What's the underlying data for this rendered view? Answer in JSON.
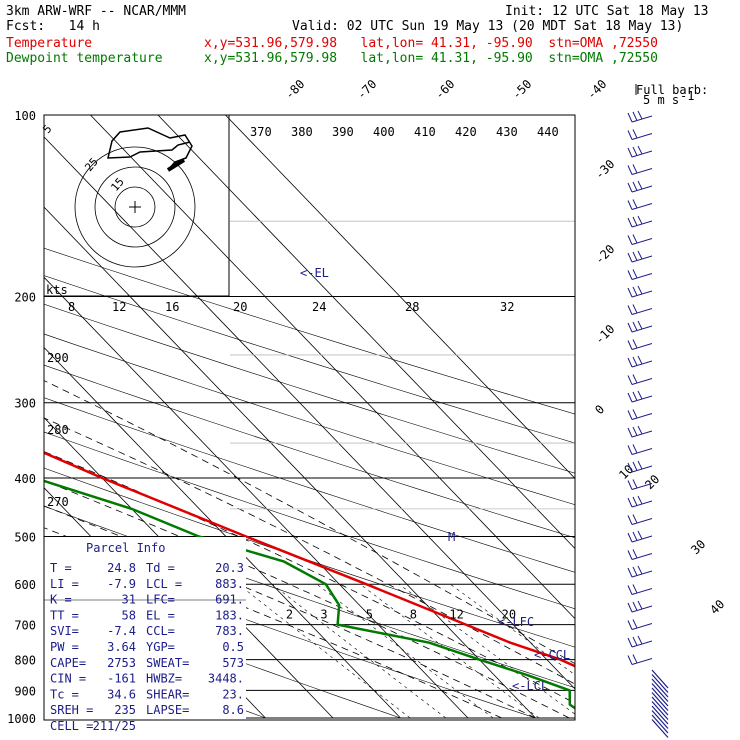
{
  "header": {
    "model": "3km ARW-WRF -- NCAR/MMM",
    "init": "Init: 12 UTC Sat 18 May 13",
    "fcst": "Fcst:   14 h",
    "valid": "Valid: 02 UTC Sun 19 May 13 (20 MDT Sat 18 May 13)",
    "line3_name": "Temperature",
    "line3_info": "x,y=531.96,579.98   lat,lon= 41.31, -95.90  stn=OMA ,72550",
    "line4_name": "Dewpoint temperature",
    "line4_info": "x,y=531.96,579.98   lat,lon= 41.31, -95.90  stn=OMA ,72550",
    "full_barb": "Full barb:",
    "full_barb_units": "5 m s",
    "full_barb_sup": "-1"
  },
  "colors": {
    "temperature": "#e00000",
    "dewpoint": "#007a00",
    "navy": "#1c1c8a",
    "dashed": "#000000"
  },
  "chart_data": {
    "type": "line",
    "subtype": "skew-T log-p diagram",
    "pressure_levels": [
      "100",
      "200",
      "300",
      "400",
      "500",
      "600",
      "700",
      "800",
      "900",
      "1000"
    ],
    "isotherm_labels": [
      "-80",
      "-70",
      "-60",
      "-50",
      "-40",
      "-30",
      "-20",
      "-10",
      "0",
      "10",
      "20",
      "30",
      "40"
    ],
    "theta_e_labels": [
      "370",
      "380",
      "390",
      "400",
      "410",
      "420",
      "430",
      "440"
    ],
    "theta_e_low_labels": [
      "290",
      "280",
      "270"
    ],
    "mixing_ratio_labels": [
      "2",
      "3",
      "5",
      "8",
      "12",
      "20"
    ],
    "hodo_speed_labels": [
      "8",
      "12",
      "16",
      "20",
      "24",
      "28",
      "32"
    ],
    "hodo_ring_labels": [
      "5",
      "25",
      "15"
    ],
    "kts_label": "kts",
    "series": [
      {
        "name": "Temperature",
        "points": [
          [
            1000,
            21
          ],
          [
            950,
            22
          ],
          [
            900,
            20
          ],
          [
            870,
            24
          ],
          [
            850,
            25
          ],
          [
            800,
            22
          ],
          [
            750,
            17
          ],
          [
            700,
            13
          ],
          [
            600,
            4
          ],
          [
            500,
            -7
          ],
          [
            400,
            -20
          ],
          [
            300,
            -35
          ],
          [
            250,
            -44
          ],
          [
            220,
            -50
          ],
          [
            200,
            -55
          ],
          [
            175,
            -55
          ],
          [
            150,
            -52
          ],
          [
            120,
            -50
          ],
          [
            100,
            -48
          ]
        ]
      },
      {
        "name": "Dewpoint temperature",
        "points": [
          [
            1000,
            18
          ],
          [
            950,
            17
          ],
          [
            900,
            19
          ],
          [
            850,
            15
          ],
          [
            800,
            10
          ],
          [
            750,
            5
          ],
          [
            700,
            -6
          ],
          [
            650,
            -3
          ],
          [
            600,
            -2
          ],
          [
            550,
            -5
          ],
          [
            500,
            -14
          ],
          [
            450,
            -20
          ],
          [
            400,
            -30
          ],
          [
            380,
            -43
          ],
          [
            350,
            -38
          ],
          [
            330,
            -42
          ],
          [
            300,
            -47
          ],
          [
            250,
            -52
          ],
          [
            220,
            -55
          ],
          [
            200,
            -60
          ],
          [
            175,
            -65
          ],
          [
            150,
            -76
          ],
          [
            130,
            -80
          ],
          [
            100,
            -82
          ]
        ]
      }
    ],
    "annotations": {
      "el": "<-EL",
      "lfc": "<-LFC",
      "ccl": "<-CCL",
      "lcl": "<-LCL",
      "m": "M"
    }
  },
  "parcel_info": {
    "title": "Parcel Info",
    "rows": [
      {
        "a_label": "T  =",
        "a_value": "24.8",
        "b_label": "Td =",
        "b_value": "20.3"
      },
      {
        "a_label": "LI =",
        "a_value": "-7.9",
        "b_label": "LCL =",
        "b_value": "883."
      },
      {
        "a_label": "K  =",
        "a_value": "31",
        "b_label": "LFC=",
        "b_value": "691."
      },
      {
        "a_label": "TT =",
        "a_value": "58",
        "b_label": "EL =",
        "b_value": "183."
      },
      {
        "a_label": "SVI=",
        "a_value": "-7.4",
        "b_label": "CCL=",
        "b_value": "783."
      },
      {
        "a_label": "PW =",
        "a_value": "3.64",
        "b_label": "YGP=",
        "b_value": "0.5"
      },
      {
        "a_label": "CAPE=",
        "a_value": "2753",
        "b_label": "SWEAT=",
        "b_value": "573"
      },
      {
        "a_label": "CIN =",
        "a_value": "-161",
        "b_label": "HWBZ=",
        "b_value": "3448."
      },
      {
        "a_label": "Tc =",
        "a_value": "34.6",
        "b_label": "SHEAR=",
        "b_value": "23."
      },
      {
        "a_label": "SREH =",
        "a_value": "235",
        "b_label": "LAPSE=",
        "b_value": "8.6"
      },
      {
        "a_label": "CELL =",
        "a_value": "211/25",
        "b_label": "",
        "b_value": ""
      }
    ]
  }
}
